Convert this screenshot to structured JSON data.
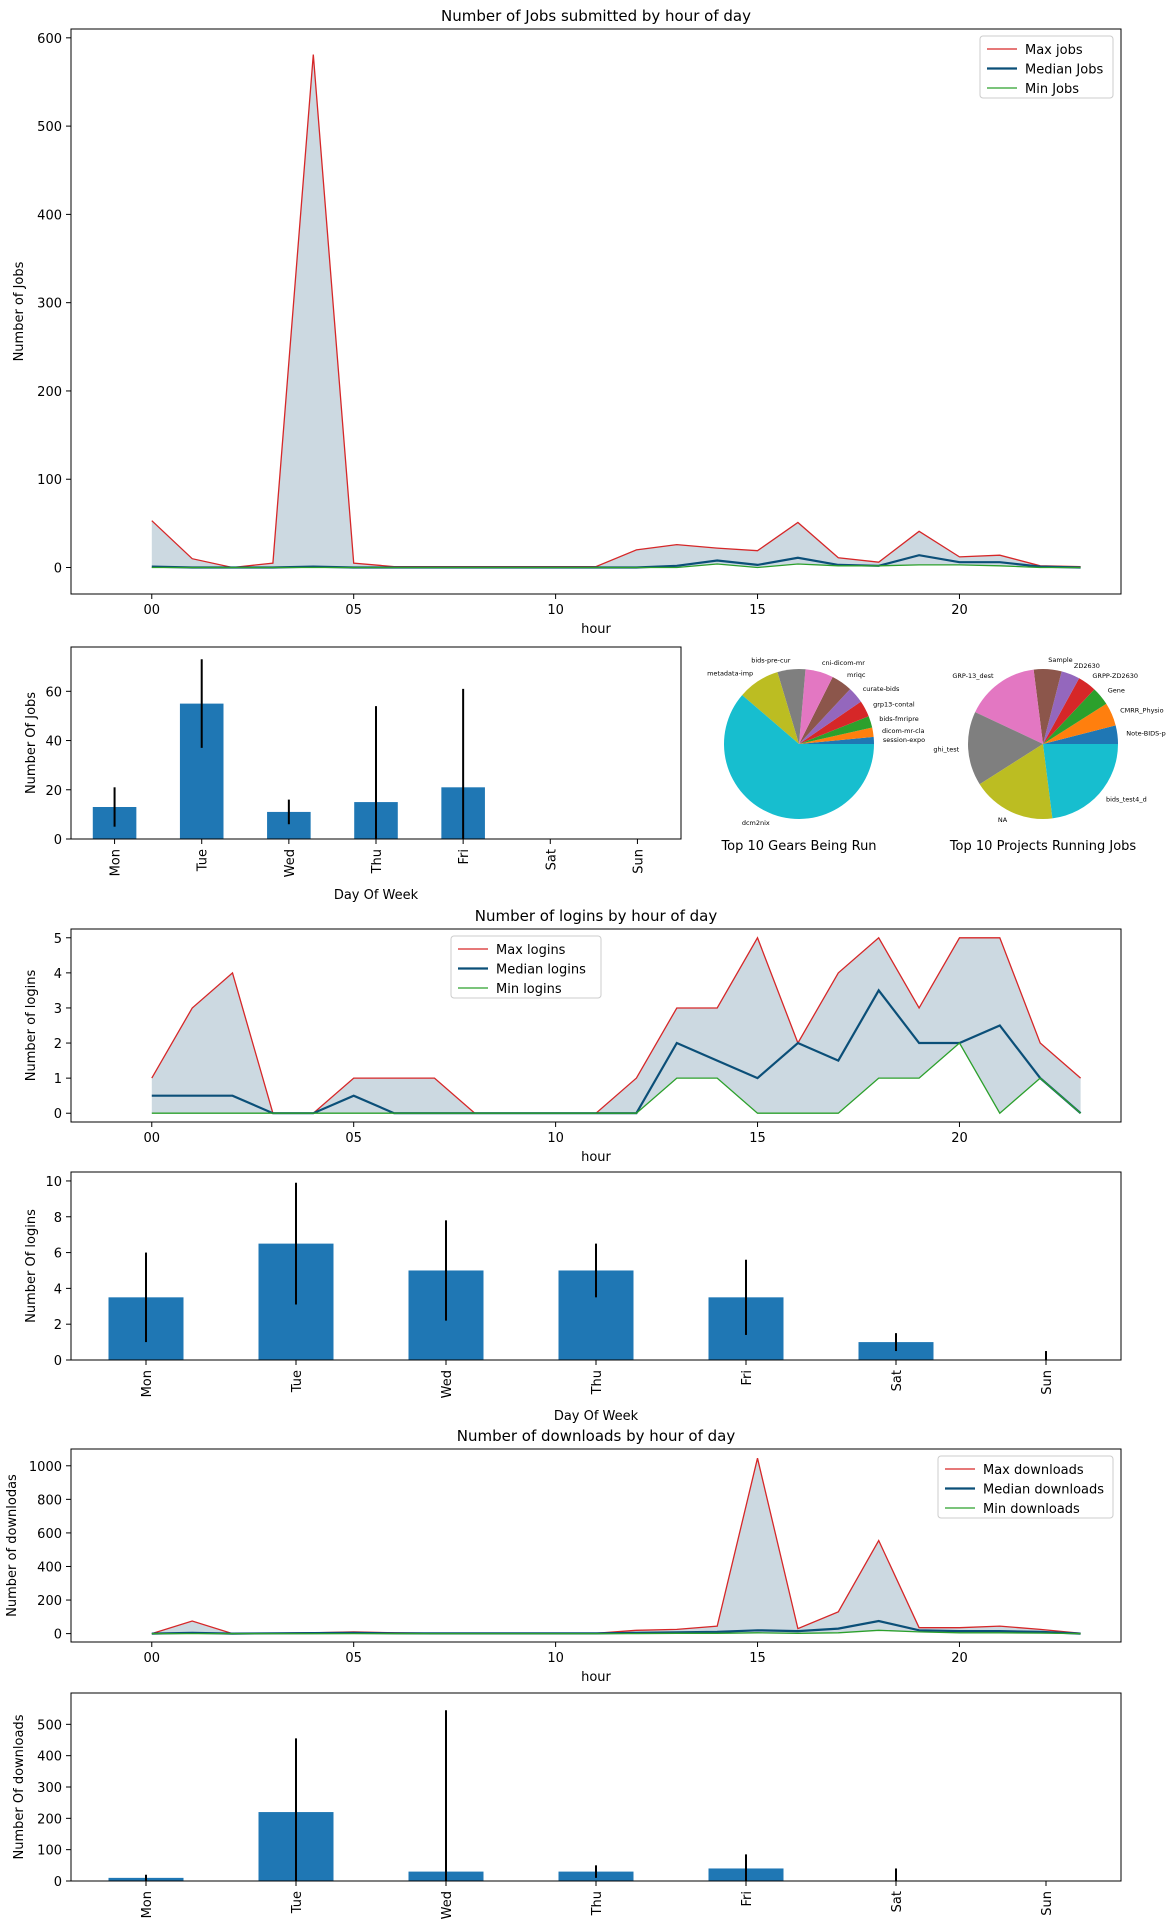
{
  "chart_data": [
    {
      "id": "jobs_hour",
      "type": "area",
      "title": "Number of Jobs submitted by hour of day",
      "xlabel": "hour",
      "ylabel": "Number of Jobs",
      "xlim": [
        -2,
        24
      ],
      "ylim": [
        -30,
        610
      ],
      "xticks": [
        0,
        5,
        10,
        15,
        20
      ],
      "xtick_labels": [
        "00",
        "05",
        "10",
        "15",
        "20"
      ],
      "yticks": [
        0,
        100,
        200,
        300,
        400,
        500,
        600
      ],
      "legend_position": "top-right",
      "x": [
        0,
        1,
        2,
        3,
        4,
        5,
        6,
        7,
        8,
        9,
        10,
        11,
        12,
        13,
        14,
        15,
        16,
        17,
        18,
        19,
        20,
        21,
        22,
        23
      ],
      "series": [
        {
          "name": "Max jobs",
          "color": "#d62728",
          "values": [
            53,
            10,
            0,
            5,
            581,
            5,
            1,
            1,
            1,
            1,
            1,
            1,
            20,
            26,
            22,
            19,
            51,
            11,
            6,
            41,
            12,
            14,
            2,
            1
          ]
        },
        {
          "name": "Median Jobs",
          "color": "#0b4f78",
          "values": [
            1,
            0,
            0,
            0,
            1,
            0,
            0,
            0,
            0,
            0,
            0,
            0,
            0,
            2,
            8,
            3,
            11,
            3,
            2,
            14,
            6,
            6,
            1,
            0
          ]
        },
        {
          "name": "Min Jobs",
          "color": "#2ca02c",
          "values": [
            0,
            0,
            0,
            0,
            0,
            0,
            0,
            0,
            0,
            0,
            0,
            0,
            0,
            0,
            4,
            0,
            4,
            2,
            2,
            3,
            3,
            2,
            0,
            0
          ]
        }
      ]
    },
    {
      "id": "jobs_dow",
      "type": "bar",
      "xlabel": "Day Of Week",
      "ylabel": "Number Of Jobs",
      "ylim": [
        0,
        78
      ],
      "yticks": [
        0,
        20,
        40,
        60
      ],
      "categories": [
        "Mon",
        "Tue",
        "Wed",
        "Thu",
        "Fri",
        "Sat",
        "Sun"
      ],
      "values": [
        13,
        55,
        11,
        15,
        21,
        0,
        0
      ],
      "error_low": [
        5,
        37,
        6,
        0,
        0,
        0,
        0
      ],
      "error_high": [
        21,
        73,
        16,
        54,
        61,
        0,
        0
      ],
      "color": "#1f77b4"
    },
    {
      "id": "gears_pie",
      "type": "pie",
      "title": "Top 10 Gears Being Run",
      "labels": [
        "session-expo",
        "dicom-mr-cla",
        "bids-fmripre",
        "grp13-contal",
        "curate-bids",
        "mriqc",
        "cni-dicom-mr",
        "bids-pre-cur",
        "metadata-imp",
        "dcm2nix"
      ],
      "values": [
        1.5,
        2,
        2.5,
        3.5,
        3.5,
        4.5,
        6,
        6,
        9,
        61
      ],
      "colors": [
        "#1f77b4",
        "#ff7f0e",
        "#2ca02c",
        "#d62728",
        "#9467bd",
        "#8c564b",
        "#e377c2",
        "#7f7f7f",
        "#bcbd22",
        "#17becf"
      ]
    },
    {
      "id": "projects_pie",
      "type": "pie",
      "title": "Top 10 Projects Running Jobs",
      "labels": [
        "Note-BIDS-pr",
        "CMRR_Physio",
        "Gene",
        "GRPP-ZD2630",
        "ZD2630",
        "Sample",
        "GRP-13_dest",
        "ghi_test",
        "NA",
        "bids_test4_d"
      ],
      "values": [
        4,
        5,
        4,
        4,
        4,
        6,
        16,
        16,
        18,
        23
      ],
      "colors": [
        "#1f77b4",
        "#ff7f0e",
        "#2ca02c",
        "#d62728",
        "#9467bd",
        "#8c564b",
        "#e377c2",
        "#7f7f7f",
        "#bcbd22",
        "#17becf"
      ]
    },
    {
      "id": "logins_hour",
      "type": "area",
      "title": "Number of logins by hour of day",
      "xlabel": "hour",
      "ylabel": "Number of logins",
      "xlim": [
        -2,
        24
      ],
      "ylim": [
        -0.25,
        5.25
      ],
      "xticks": [
        0,
        5,
        10,
        15,
        20
      ],
      "xtick_labels": [
        "00",
        "05",
        "10",
        "15",
        "20"
      ],
      "yticks": [
        0,
        1,
        2,
        3,
        4,
        5
      ],
      "legend_position": "top-center",
      "x": [
        0,
        1,
        2,
        3,
        4,
        5,
        6,
        7,
        8,
        9,
        10,
        11,
        12,
        13,
        14,
        15,
        16,
        17,
        18,
        19,
        20,
        21,
        22,
        23
      ],
      "series": [
        {
          "name": "Max logins",
          "color": "#d62728",
          "values": [
            1,
            3,
            4,
            0,
            0,
            1,
            1,
            1,
            0,
            0,
            0,
            0,
            1,
            3,
            3,
            5,
            2,
            4,
            5,
            3,
            5,
            5,
            2,
            1
          ]
        },
        {
          "name": "Median logins",
          "color": "#0b4f78",
          "values": [
            0.5,
            0.5,
            0.5,
            0,
            0,
            0.5,
            0,
            0,
            0,
            0,
            0,
            0,
            0,
            2,
            1.5,
            1,
            2,
            1.5,
            3.5,
            2,
            2,
            2.5,
            1,
            0
          ]
        },
        {
          "name": "Min logins",
          "color": "#2ca02c",
          "values": [
            0,
            0,
            0,
            0,
            0,
            0,
            0,
            0,
            0,
            0,
            0,
            0,
            0,
            1,
            1,
            0,
            0,
            0,
            1,
            1,
            2,
            0,
            1,
            0
          ]
        }
      ]
    },
    {
      "id": "logins_dow",
      "type": "bar",
      "xlabel": "Day Of Week",
      "ylabel": "Number Of logins",
      "ylim": [
        0,
        10.5
      ],
      "yticks": [
        0,
        2,
        4,
        6,
        8,
        10
      ],
      "categories": [
        "Mon",
        "Tue",
        "Wed",
        "Thu",
        "Fri",
        "Sat",
        "Sun"
      ],
      "values": [
        3.5,
        6.5,
        5,
        5,
        3.5,
        1,
        0
      ],
      "error_low": [
        1,
        3.1,
        2.2,
        3.5,
        1.4,
        0.5,
        0
      ],
      "error_high": [
        6,
        9.9,
        7.8,
        6.5,
        5.6,
        1.5,
        0.5
      ],
      "color": "#1f77b4"
    },
    {
      "id": "downloads_hour",
      "type": "area",
      "title": "Number of downloads by hour of day",
      "xlabel": "hour",
      "ylabel": "Number of downlodas",
      "xlim": [
        -2,
        24
      ],
      "ylim": [
        -50,
        1100
      ],
      "xticks": [
        0,
        5,
        10,
        15,
        20
      ],
      "xtick_labels": [
        "00",
        "05",
        "10",
        "15",
        "20"
      ],
      "yticks": [
        0,
        200,
        400,
        600,
        800,
        1000
      ],
      "legend_position": "top-right",
      "x": [
        0,
        1,
        2,
        3,
        4,
        5,
        6,
        7,
        8,
        9,
        10,
        11,
        12,
        13,
        14,
        15,
        16,
        17,
        18,
        19,
        20,
        21,
        22,
        23
      ],
      "series": [
        {
          "name": "Max downloads",
          "color": "#d62728",
          "values": [
            0,
            75,
            0,
            2,
            5,
            10,
            5,
            2,
            2,
            2,
            2,
            2,
            20,
            25,
            45,
            1045,
            30,
            130,
            555,
            35,
            35,
            45,
            25,
            2
          ]
        },
        {
          "name": "Median downloads",
          "color": "#0b4f78",
          "values": [
            0,
            5,
            0,
            2,
            3,
            4,
            2,
            1,
            1,
            1,
            1,
            1,
            5,
            8,
            10,
            20,
            15,
            30,
            75,
            20,
            15,
            15,
            10,
            0
          ]
        },
        {
          "name": "Min downloads",
          "color": "#2ca02c",
          "values": [
            0,
            0,
            0,
            0,
            0,
            0,
            0,
            0,
            0,
            0,
            0,
            0,
            0,
            2,
            2,
            5,
            2,
            5,
            20,
            10,
            5,
            5,
            3,
            0
          ]
        }
      ]
    },
    {
      "id": "downloads_dow",
      "type": "bar",
      "xlabel": "Day Of Week",
      "ylabel": "Number Of downloads",
      "ylim": [
        0,
        600
      ],
      "yticks": [
        0,
        100,
        200,
        300,
        400,
        500
      ],
      "categories": [
        "Mon",
        "Tue",
        "Wed",
        "Thu",
        "Fri",
        "Sat",
        "Sun"
      ],
      "values": [
        10,
        220,
        30,
        30,
        40,
        0,
        0
      ],
      "error_low": [
        0,
        0,
        0,
        10,
        0,
        0,
        0
      ],
      "error_high": [
        20,
        455,
        545,
        50,
        85,
        40,
        0
      ],
      "color": "#1f77b4"
    }
  ]
}
